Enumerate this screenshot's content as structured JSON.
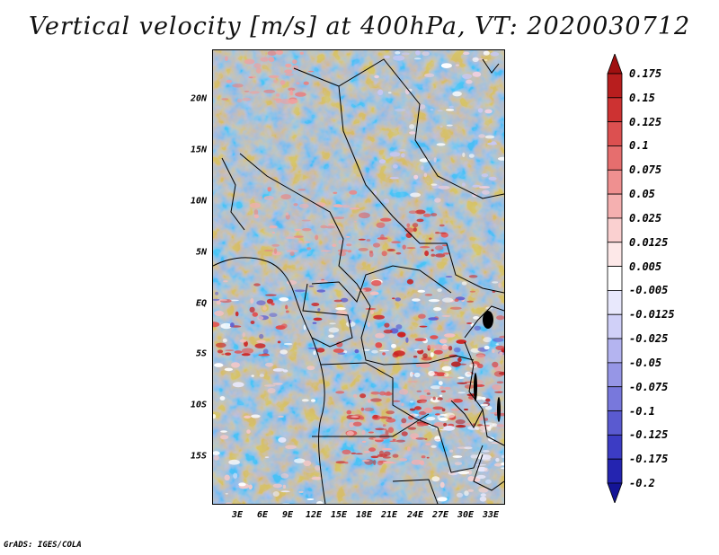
{
  "title": "Vertical velocity [m/s] at 400hPa, VT: 2020030712",
  "footer": "GrADS: IGES/COLA",
  "map": {
    "lat_labels": [
      "20N",
      "15N",
      "10N",
      "5N",
      "EQ",
      "5S",
      "10S",
      "15S"
    ],
    "lon_labels": [
      "3E",
      "6E",
      "9E",
      "12E",
      "15E",
      "18E",
      "21E",
      "24E",
      "27E",
      "30E",
      "33E"
    ],
    "field_name": "vertical velocity",
    "units": "m/s",
    "level": "400hPa",
    "valid_time": "2020030712"
  },
  "colorbar": {
    "labels": [
      "0.175",
      "0.15",
      "0.125",
      "0.1",
      "0.075",
      "0.05",
      "0.025",
      "0.0125",
      "0.005",
      "-0.005",
      "-0.0125",
      "-0.025",
      "-0.05",
      "-0.075",
      "-0.1",
      "-0.125",
      "-0.175",
      "-0.2"
    ],
    "colors": [
      "#a01010",
      "#b81e1e",
      "#cd3232",
      "#dc5050",
      "#e66e6e",
      "#ef9090",
      "#f5b0b0",
      "#fad0d0",
      "#fde8e8",
      "#ffffff",
      "#e8e8fc",
      "#d0d0f8",
      "#b4b4f0",
      "#9696e6",
      "#7878dc",
      "#5a5ad0",
      "#3c3cc4",
      "#2424b0",
      "#141496"
    ]
  }
}
